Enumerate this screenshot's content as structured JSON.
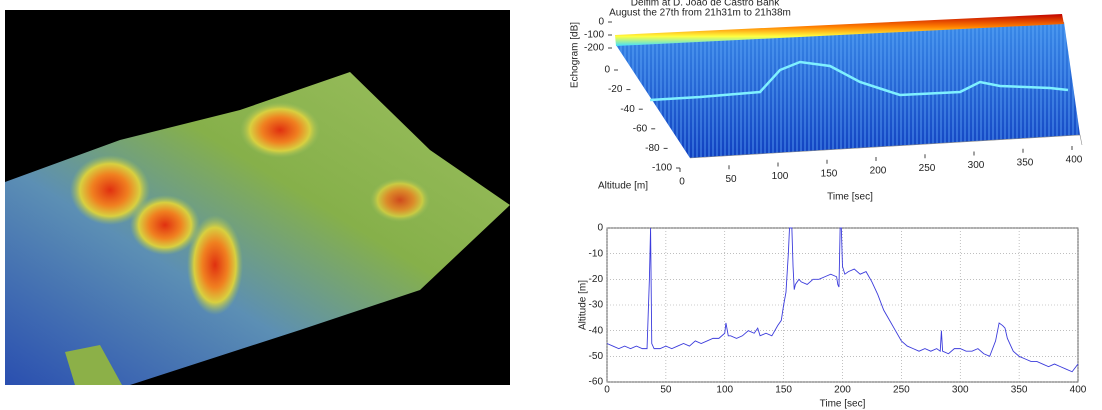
{
  "chart_data": [
    {
      "type": "surface3d",
      "title": "Delfim at D. João de Castro Bank",
      "subtitle": "August the 27th from 21h31m to 21h38m",
      "zlabel": "Echogram [dB]",
      "ylabel": "Altitude [m]",
      "xlabel": "Time [sec]",
      "xlim": [
        0,
        400
      ],
      "xticks": [
        0,
        50,
        100,
        150,
        200,
        250,
        300,
        350,
        400
      ],
      "ylim": [
        -100,
        0
      ],
      "yticks": [
        0,
        -20,
        -40,
        -60,
        -80,
        -100
      ],
      "zlim": [
        -200,
        0
      ],
      "zticks": [
        0,
        -100,
        -200
      ]
    },
    {
      "type": "line",
      "xlabel": "Time [sec]",
      "ylabel": "Altitude [m]",
      "xlim": [
        0,
        400
      ],
      "xticks": [
        0,
        50,
        100,
        150,
        200,
        250,
        300,
        350,
        400
      ],
      "ylim": [
        -60,
        0
      ],
      "yticks": [
        0,
        -10,
        -20,
        -30,
        -40,
        -50,
        -60
      ],
      "grid": true,
      "color": "#3c3cdc",
      "x": [
        0,
        5,
        10,
        15,
        20,
        25,
        30,
        34,
        36,
        37,
        38,
        40,
        45,
        50,
        55,
        60,
        65,
        70,
        75,
        80,
        85,
        90,
        95,
        100,
        101,
        103,
        105,
        110,
        115,
        120,
        125,
        128,
        130,
        135,
        140,
        145,
        148,
        150,
        152,
        154,
        155,
        157,
        158,
        159,
        160,
        163,
        165,
        170,
        175,
        180,
        185,
        190,
        195,
        196,
        197,
        198,
        199,
        200,
        202,
        205,
        210,
        215,
        220,
        225,
        230,
        235,
        240,
        245,
        250,
        255,
        260,
        265,
        270,
        275,
        280,
        283,
        284,
        285,
        290,
        295,
        300,
        305,
        310,
        315,
        320,
        325,
        330,
        333,
        336,
        338,
        340,
        345,
        350,
        355,
        360,
        365,
        370,
        375,
        380,
        385,
        390,
        395,
        400
      ],
      "values": [
        -45,
        -46,
        -47,
        -46,
        -47,
        -46,
        -47,
        -47,
        -20,
        0,
        -45,
        -47,
        -47,
        -46,
        -47,
        -46,
        -45,
        -46,
        -44,
        -45,
        -44,
        -43,
        -43,
        -41,
        -37,
        -42,
        -42,
        -43,
        -42,
        -40,
        -41,
        -39,
        -42,
        -41,
        -42,
        -38,
        -36,
        -30,
        -25,
        -10,
        0,
        0,
        -15,
        -24,
        -22,
        -20,
        -21,
        -22,
        -20,
        -20,
        -19,
        -18,
        -19,
        -22,
        -23,
        0,
        0,
        -15,
        -18,
        -17,
        -16,
        -18,
        -17,
        -21,
        -26,
        -32,
        -36,
        -40,
        -44,
        -46,
        -47,
        -48,
        -47,
        -48,
        -47,
        -48,
        -40,
        -48,
        -49,
        -47,
        -47,
        -48,
        -48,
        -47,
        -49,
        -50,
        -44,
        -37,
        -38,
        -39,
        -43,
        -48,
        -50,
        -51,
        -52,
        -52,
        -53,
        -54,
        -53,
        -54,
        -55,
        -56,
        -53
      ]
    }
  ]
}
